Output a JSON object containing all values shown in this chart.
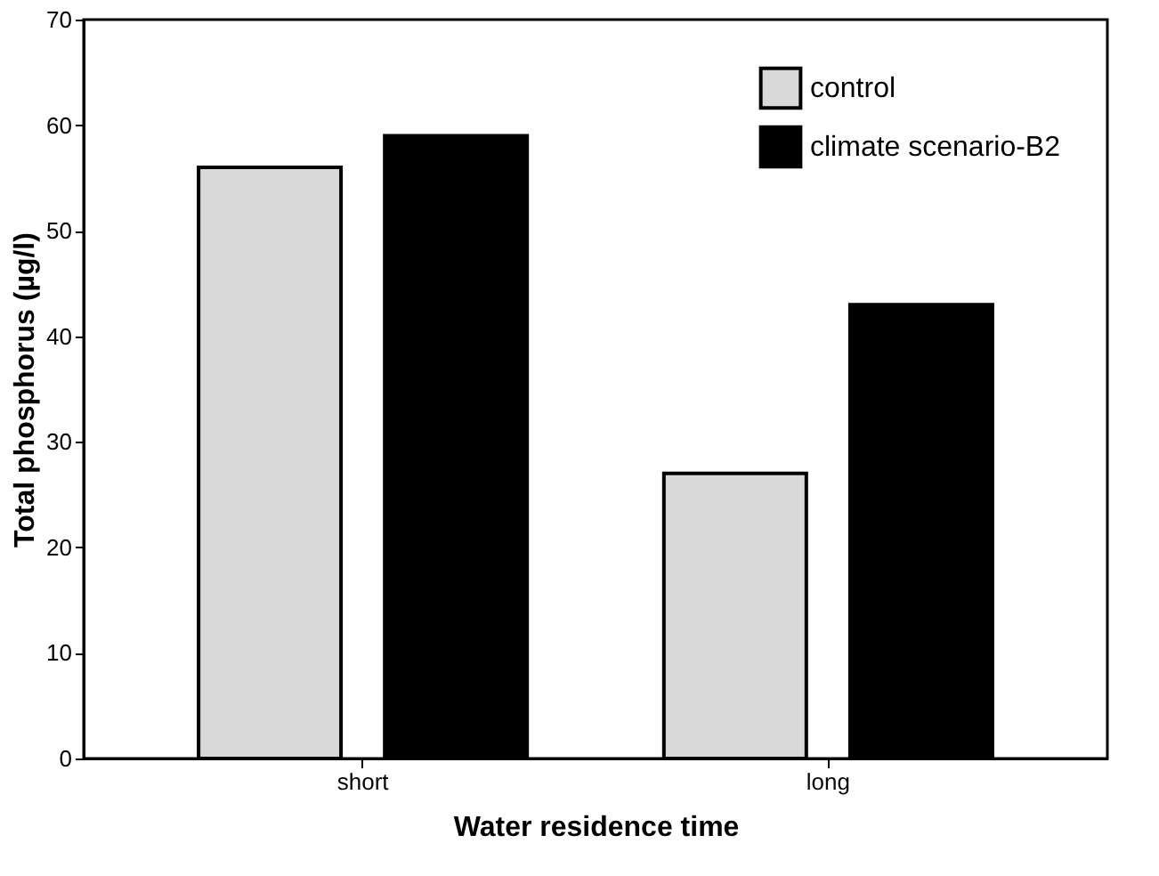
{
  "chart_data": {
    "type": "bar",
    "xlabel": "Water residence time",
    "ylabel": "Total phosphorus (µg/l)",
    "categories": [
      "short",
      "long"
    ],
    "series": [
      {
        "name": "control",
        "color": "#d9d9d9",
        "values": [
          56,
          27
        ]
      },
      {
        "name": "climate scenario-B2",
        "color": "#000000",
        "values": [
          59,
          43
        ]
      }
    ],
    "ylim": [
      0,
      70
    ],
    "yticks": [
      0,
      10,
      20,
      30,
      40,
      50,
      60,
      70
    ],
    "grid": false,
    "legend": "top right"
  }
}
